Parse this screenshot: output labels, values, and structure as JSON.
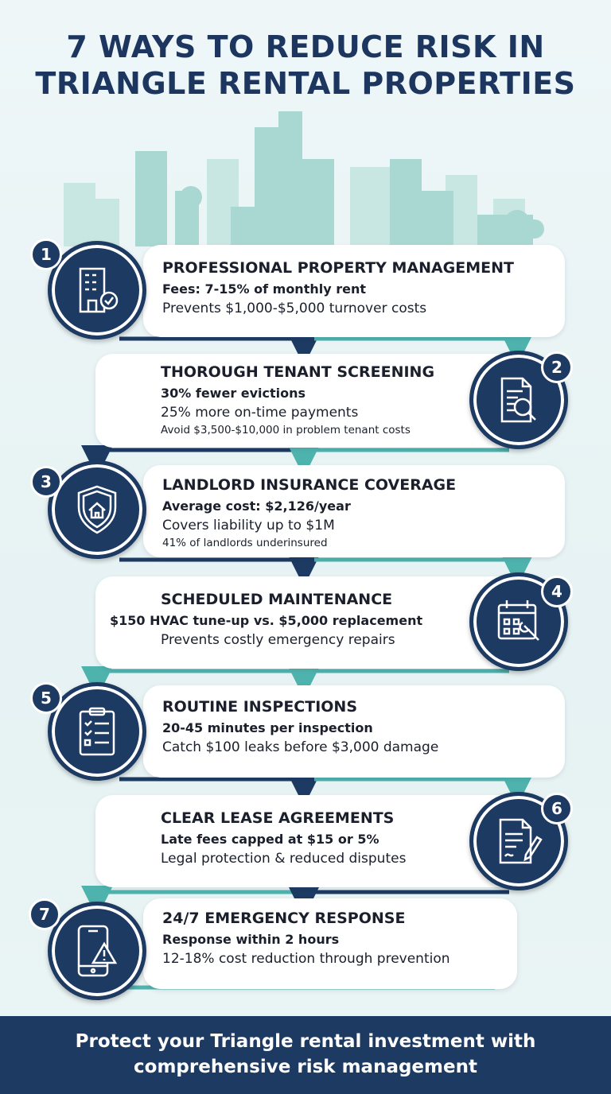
{
  "title": {
    "line1": "7 WAYS TO REDUCE RISK IN",
    "line2": "TRIANGLE RENTAL PROPERTIES"
  },
  "colors": {
    "navy": "#1d3a63",
    "teal": "#4fb3ad",
    "skyline": "#a9d8d2"
  },
  "steps": [
    {
      "number": "1",
      "icon": "building-check-icon",
      "title": "PROFESSIONAL PROPERTY MANAGEMENT",
      "bold": "Fees: 7-15% of monthly rent",
      "line": "Prevents $1,000-$5,000 turnover costs"
    },
    {
      "number": "2",
      "icon": "document-search-icon",
      "title": "THOROUGH TENANT SCREENING",
      "bold": "30% fewer evictions",
      "line": "25% more on-time payments",
      "small": "Avoid $3,500-$10,000 in problem tenant costs"
    },
    {
      "number": "3",
      "icon": "shield-house-icon",
      "title": "LANDLORD INSURANCE COVERAGE",
      "bold": "Average cost: $2,126/year",
      "line": "Covers liability up to $1M",
      "small": "41% of landlords underinsured"
    },
    {
      "number": "4",
      "icon": "calendar-wrench-icon",
      "title": "SCHEDULED MAINTENANCE",
      "bold": "$150 HVAC tune-up vs. $5,000 replacement",
      "line": "Prevents costly emergency repairs"
    },
    {
      "number": "5",
      "icon": "clipboard-checklist-icon",
      "title": "ROUTINE INSPECTIONS",
      "bold": "20-45 minutes per inspection",
      "line": "Catch $100 leaks before $3,000 damage"
    },
    {
      "number": "6",
      "icon": "contract-pen-icon",
      "title": "CLEAR LEASE AGREEMENTS",
      "bold": "Late fees capped at $15 or 5%",
      "line": "Legal protection & reduced disputes"
    },
    {
      "number": "7",
      "icon": "phone-alert-icon",
      "title": "24/7 EMERGENCY RESPONSE",
      "bold": "Response within 2 hours",
      "line": "12-18% cost reduction through prevention"
    }
  ],
  "footer": {
    "line1": "Protect your Triangle rental investment with",
    "line2": "comprehensive risk management"
  }
}
